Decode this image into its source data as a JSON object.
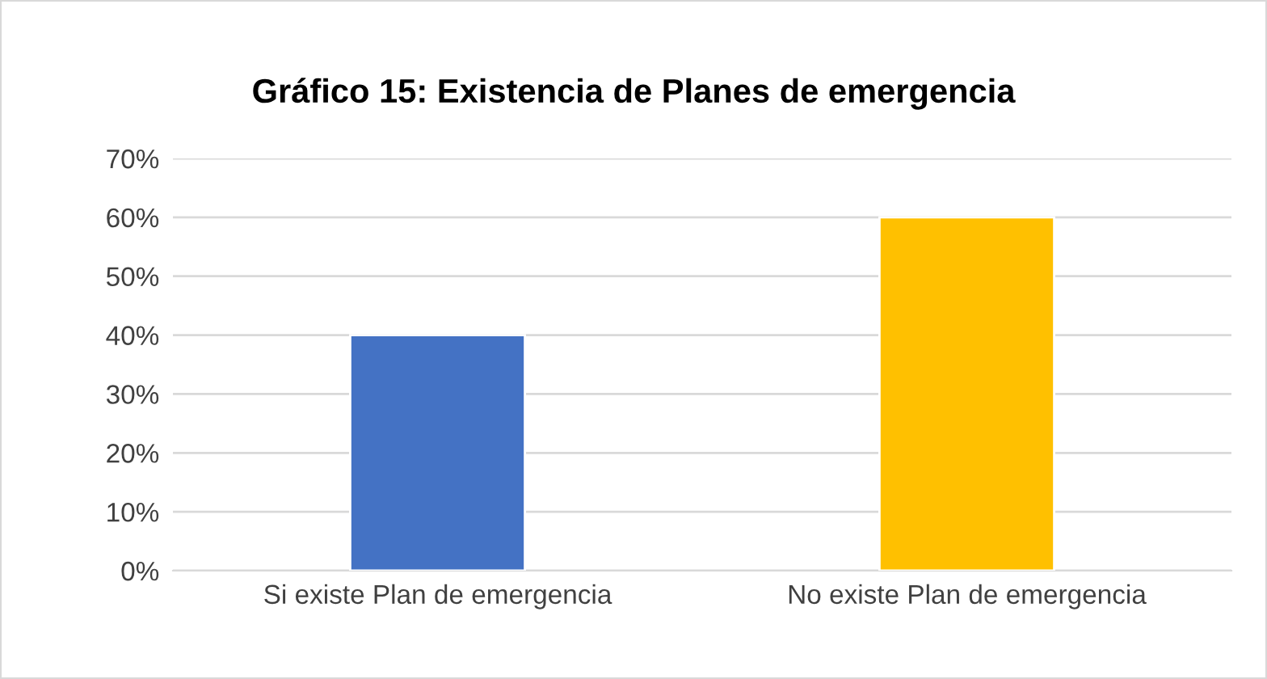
{
  "chart_data": {
    "type": "bar",
    "title": "Gráfico 15: Existencia de Planes de emergencia",
    "categories": [
      "Si existe Plan de emergencia",
      "No existe Plan de emergencia"
    ],
    "values": [
      40,
      60
    ],
    "colors": [
      "#4472c4",
      "#ffc000"
    ],
    "ylim": [
      0,
      70
    ],
    "yticks": [
      {
        "value": 0,
        "label": "0%"
      },
      {
        "value": 10,
        "label": "10%"
      },
      {
        "value": 20,
        "label": "20%"
      },
      {
        "value": 30,
        "label": "30%"
      },
      {
        "value": 40,
        "label": "40%"
      },
      {
        "value": 50,
        "label": "50%"
      },
      {
        "value": 60,
        "label": "60%"
      },
      {
        "value": 70,
        "label": "70%"
      }
    ],
    "grid": "y",
    "legend": false
  }
}
